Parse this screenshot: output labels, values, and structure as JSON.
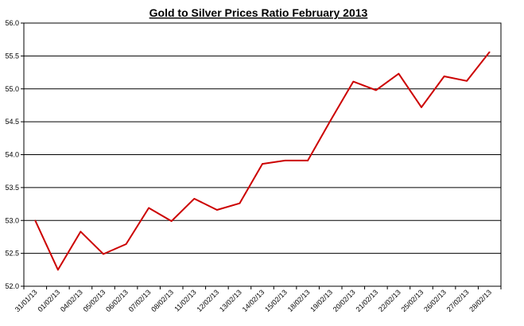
{
  "chart_data": {
    "type": "line",
    "title": "Gold to Silver Prices Ratio February  2013",
    "xlabel": "",
    "ylabel": "",
    "ylim": [
      52.0,
      56.0
    ],
    "ytick_labels": [
      "52.0",
      "52.5",
      "53.0",
      "53.5",
      "54.0",
      "54.5",
      "55.0",
      "55.5",
      "56.0"
    ],
    "grid": true,
    "legend": "none",
    "line_color": "#cc0000",
    "categories": [
      "31/01/13",
      "01/02/13",
      "04/02/13",
      "05/02/13",
      "06/02/13",
      "07/02/13",
      "08/02/13",
      "11/02/13",
      "12/02/13",
      "13/02/13",
      "14/02/13",
      "15/02/13",
      "18/02/13",
      "19/02/13",
      "20/02/13",
      "21/02/13",
      "22/02/13",
      "25/02/13",
      "26/02/13",
      "27/02/13",
      "28/02/13"
    ],
    "values": [
      53.0,
      52.25,
      52.83,
      52.49,
      52.64,
      53.19,
      52.99,
      53.33,
      53.16,
      53.26,
      53.86,
      53.91,
      53.91,
      54.52,
      55.11,
      54.98,
      55.23,
      54.72,
      55.19,
      55.12,
      55.56
    ]
  }
}
